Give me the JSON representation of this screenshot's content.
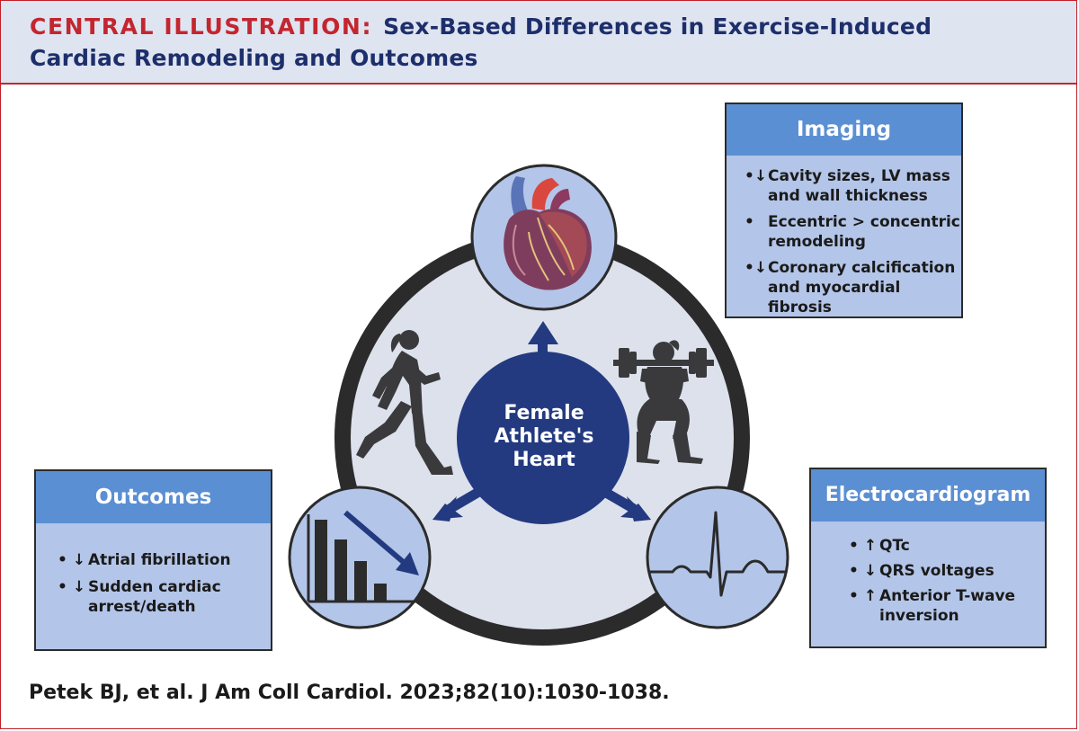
{
  "header": {
    "title_lead": "CENTRAL ILLUSTRATION:",
    "title_line1": "Sex-Based Differences in Exercise-Induced",
    "title_line2": "Cardiac Remodeling and Outcomes"
  },
  "center": {
    "label_line1": "Female",
    "label_line2": "Athlete's",
    "label_line3": "Heart"
  },
  "imaging": {
    "title": "Imaging",
    "items": [
      {
        "arrow": "down",
        "line1": "Cavity sizes, LV mass",
        "line2": "and wall thickness"
      },
      {
        "arrow": "",
        "line1": "Eccentric > concentric",
        "line2": "remodeling"
      },
      {
        "arrow": "down",
        "line1": "Coronary calcification",
        "line2": "and myocardial fibrosis"
      }
    ]
  },
  "outcomes": {
    "title": "Outcomes",
    "items": [
      {
        "arrow": "down",
        "line1": "Atrial fibrillation",
        "line2": ""
      },
      {
        "arrow": "down",
        "line1": "Sudden cardiac",
        "line2": "arrest/death"
      }
    ]
  },
  "ecg": {
    "title": "Electrocardiogram",
    "items": [
      {
        "arrow": "up",
        "line1": "QTc",
        "line2": ""
      },
      {
        "arrow": "down",
        "line1": "QRS voltages",
        "line2": ""
      },
      {
        "arrow": "up",
        "line1": "Anterior T-wave",
        "line2": "inversion"
      }
    ]
  },
  "citation": "Petek BJ, et al. J Am Coll Cardiol. 2023;82(10):1030-1038.",
  "glyphs": {
    "bullet": "•",
    "down": "↓",
    "up": "↑"
  },
  "colors": {
    "brand_red": "#c3262f",
    "navy": "#1d2f6b",
    "header_bg": "#dfe4f1",
    "box_fill": "#b3c5e8",
    "box_header": "#5b8fd3",
    "center_circle": "#233a80",
    "ring": "#2b2b2b",
    "inner_circle": "#dde1ec"
  }
}
